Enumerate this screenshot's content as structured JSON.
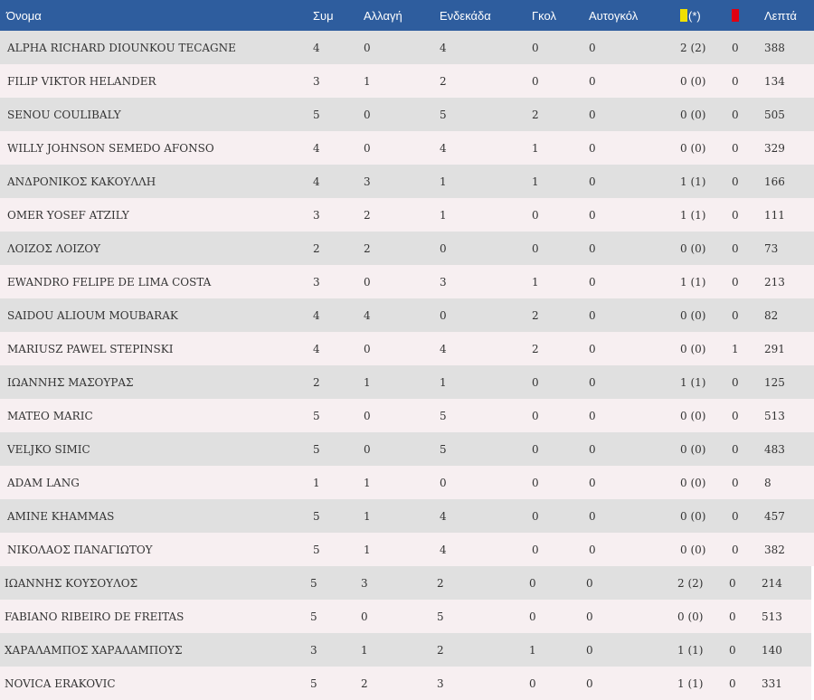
{
  "colors": {
    "header_bg": "#2e5d9e",
    "row_odd": "#e0e0e0",
    "row_even": "#f7eff1",
    "yellow_card": "#f0e000",
    "red_card": "#e00012"
  },
  "header": {
    "name": "Όνομα",
    "apps": "Συμ",
    "subs": "Αλλαγή",
    "starts": "Ενδεκάδα",
    "goals": "Γκολ",
    "own_goals": "Αυτογκόλ",
    "yellow_icon": "yellow-card-icon",
    "yellow_suffix": "(*)",
    "red_icon": "red-card-icon",
    "minutes": "Λεπτά"
  },
  "players": [
    {
      "name": "ALPHA RICHARD DIOUNKOU TECAGNE",
      "apps": "4",
      "subs": "0",
      "starts": "4",
      "goals": "0",
      "own_goals": "0",
      "yellow": "2 (2)",
      "red": "0",
      "minutes": "388"
    },
    {
      "name": "FILIP VIKTOR HELANDER",
      "apps": "3",
      "subs": "1",
      "starts": "2",
      "goals": "0",
      "own_goals": "0",
      "yellow": "0 (0)",
      "red": "0",
      "minutes": "134"
    },
    {
      "name": "SENOU COULIBALY",
      "apps": "5",
      "subs": "0",
      "starts": "5",
      "goals": "2",
      "own_goals": "0",
      "yellow": "0 (0)",
      "red": "0",
      "minutes": "505"
    },
    {
      "name": "WILLY JOHNSON SEMEDO AFONSO",
      "apps": "4",
      "subs": "0",
      "starts": "4",
      "goals": "1",
      "own_goals": "0",
      "yellow": "0 (0)",
      "red": "0",
      "minutes": "329"
    },
    {
      "name": "ΑΝΔΡΟΝΙΚΟΣ ΚΑΚΟΥΛΛΗ",
      "apps": "4",
      "subs": "3",
      "starts": "1",
      "goals": "1",
      "own_goals": "0",
      "yellow": "1 (1)",
      "red": "0",
      "minutes": "166"
    },
    {
      "name": "OMER YOSEF ATZILY",
      "apps": "3",
      "subs": "2",
      "starts": "1",
      "goals": "0",
      "own_goals": "0",
      "yellow": "1 (1)",
      "red": "0",
      "minutes": "111"
    },
    {
      "name": "ΛΟΙΖΟΣ ΛΟΙΖΟΥ",
      "apps": "2",
      "subs": "2",
      "starts": "0",
      "goals": "0",
      "own_goals": "0",
      "yellow": "0 (0)",
      "red": "0",
      "minutes": "73"
    },
    {
      "name": "EWANDRO FELIPE DE LIMA COSTA",
      "apps": "3",
      "subs": "0",
      "starts": "3",
      "goals": "1",
      "own_goals": "0",
      "yellow": "1 (1)",
      "red": "0",
      "minutes": "213"
    },
    {
      "name": "SAIDOU ALIOUM MOUBARAK",
      "apps": "4",
      "subs": "4",
      "starts": "0",
      "goals": "2",
      "own_goals": "0",
      "yellow": "0 (0)",
      "red": "0",
      "minutes": "82"
    },
    {
      "name": "MARIUSZ PAWEL STEPINSKI",
      "apps": "4",
      "subs": "0",
      "starts": "4",
      "goals": "2",
      "own_goals": "0",
      "yellow": "0 (0)",
      "red": "1",
      "minutes": "291"
    },
    {
      "name": "ΙΩΑΝΝΗΣ ΜΑΣΟΥΡΑΣ",
      "apps": "2",
      "subs": "1",
      "starts": "1",
      "goals": "0",
      "own_goals": "0",
      "yellow": "1 (1)",
      "red": "0",
      "minutes": "125"
    },
    {
      "name": "MATEO MARIC",
      "apps": "5",
      "subs": "0",
      "starts": "5",
      "goals": "0",
      "own_goals": "0",
      "yellow": "0 (0)",
      "red": "0",
      "minutes": "513"
    },
    {
      "name": "VELJKO SIMIC",
      "apps": "5",
      "subs": "0",
      "starts": "5",
      "goals": "0",
      "own_goals": "0",
      "yellow": "0 (0)",
      "red": "0",
      "minutes": "483"
    },
    {
      "name": "ADAM LANG",
      "apps": "1",
      "subs": "1",
      "starts": "0",
      "goals": "0",
      "own_goals": "0",
      "yellow": "0 (0)",
      "red": "0",
      "minutes": "8"
    },
    {
      "name": "AMINE KHAMMAS",
      "apps": "5",
      "subs": "1",
      "starts": "4",
      "goals": "0",
      "own_goals": "0",
      "yellow": "0 (0)",
      "red": "0",
      "minutes": "457"
    },
    {
      "name": "ΝΙΚΟΛΑΟΣ ΠΑΝΑΓΙΩΤΟΥ",
      "apps": "5",
      "subs": "1",
      "starts": "4",
      "goals": "0",
      "own_goals": "0",
      "yellow": "0 (0)",
      "red": "0",
      "minutes": "382"
    },
    {
      "name": "ΙΩΑΝΝΗΣ ΚΟΥΣΟΥΛΟΣ",
      "apps": "5",
      "subs": "3",
      "starts": "2",
      "goals": "0",
      "own_goals": "0",
      "yellow": "2 (2)",
      "red": "0",
      "minutes": "214"
    },
    {
      "name": "FABIANO RIBEIRO DE FREITAS",
      "apps": "5",
      "subs": "0",
      "starts": "5",
      "goals": "0",
      "own_goals": "0",
      "yellow": "0 (0)",
      "red": "0",
      "minutes": "513"
    },
    {
      "name": "ΧΑΡΑΛΑΜΠΟΣ ΧΑΡΑΛΑΜΠΟΥΣ",
      "apps": "3",
      "subs": "1",
      "starts": "2",
      "goals": "1",
      "own_goals": "0",
      "yellow": "1 (1)",
      "red": "0",
      "minutes": "140"
    },
    {
      "name": "NOVICA ERAKOVIC",
      "apps": "5",
      "subs": "2",
      "starts": "3",
      "goals": "0",
      "own_goals": "0",
      "yellow": "1 (1)",
      "red": "0",
      "minutes": "331"
    }
  ]
}
